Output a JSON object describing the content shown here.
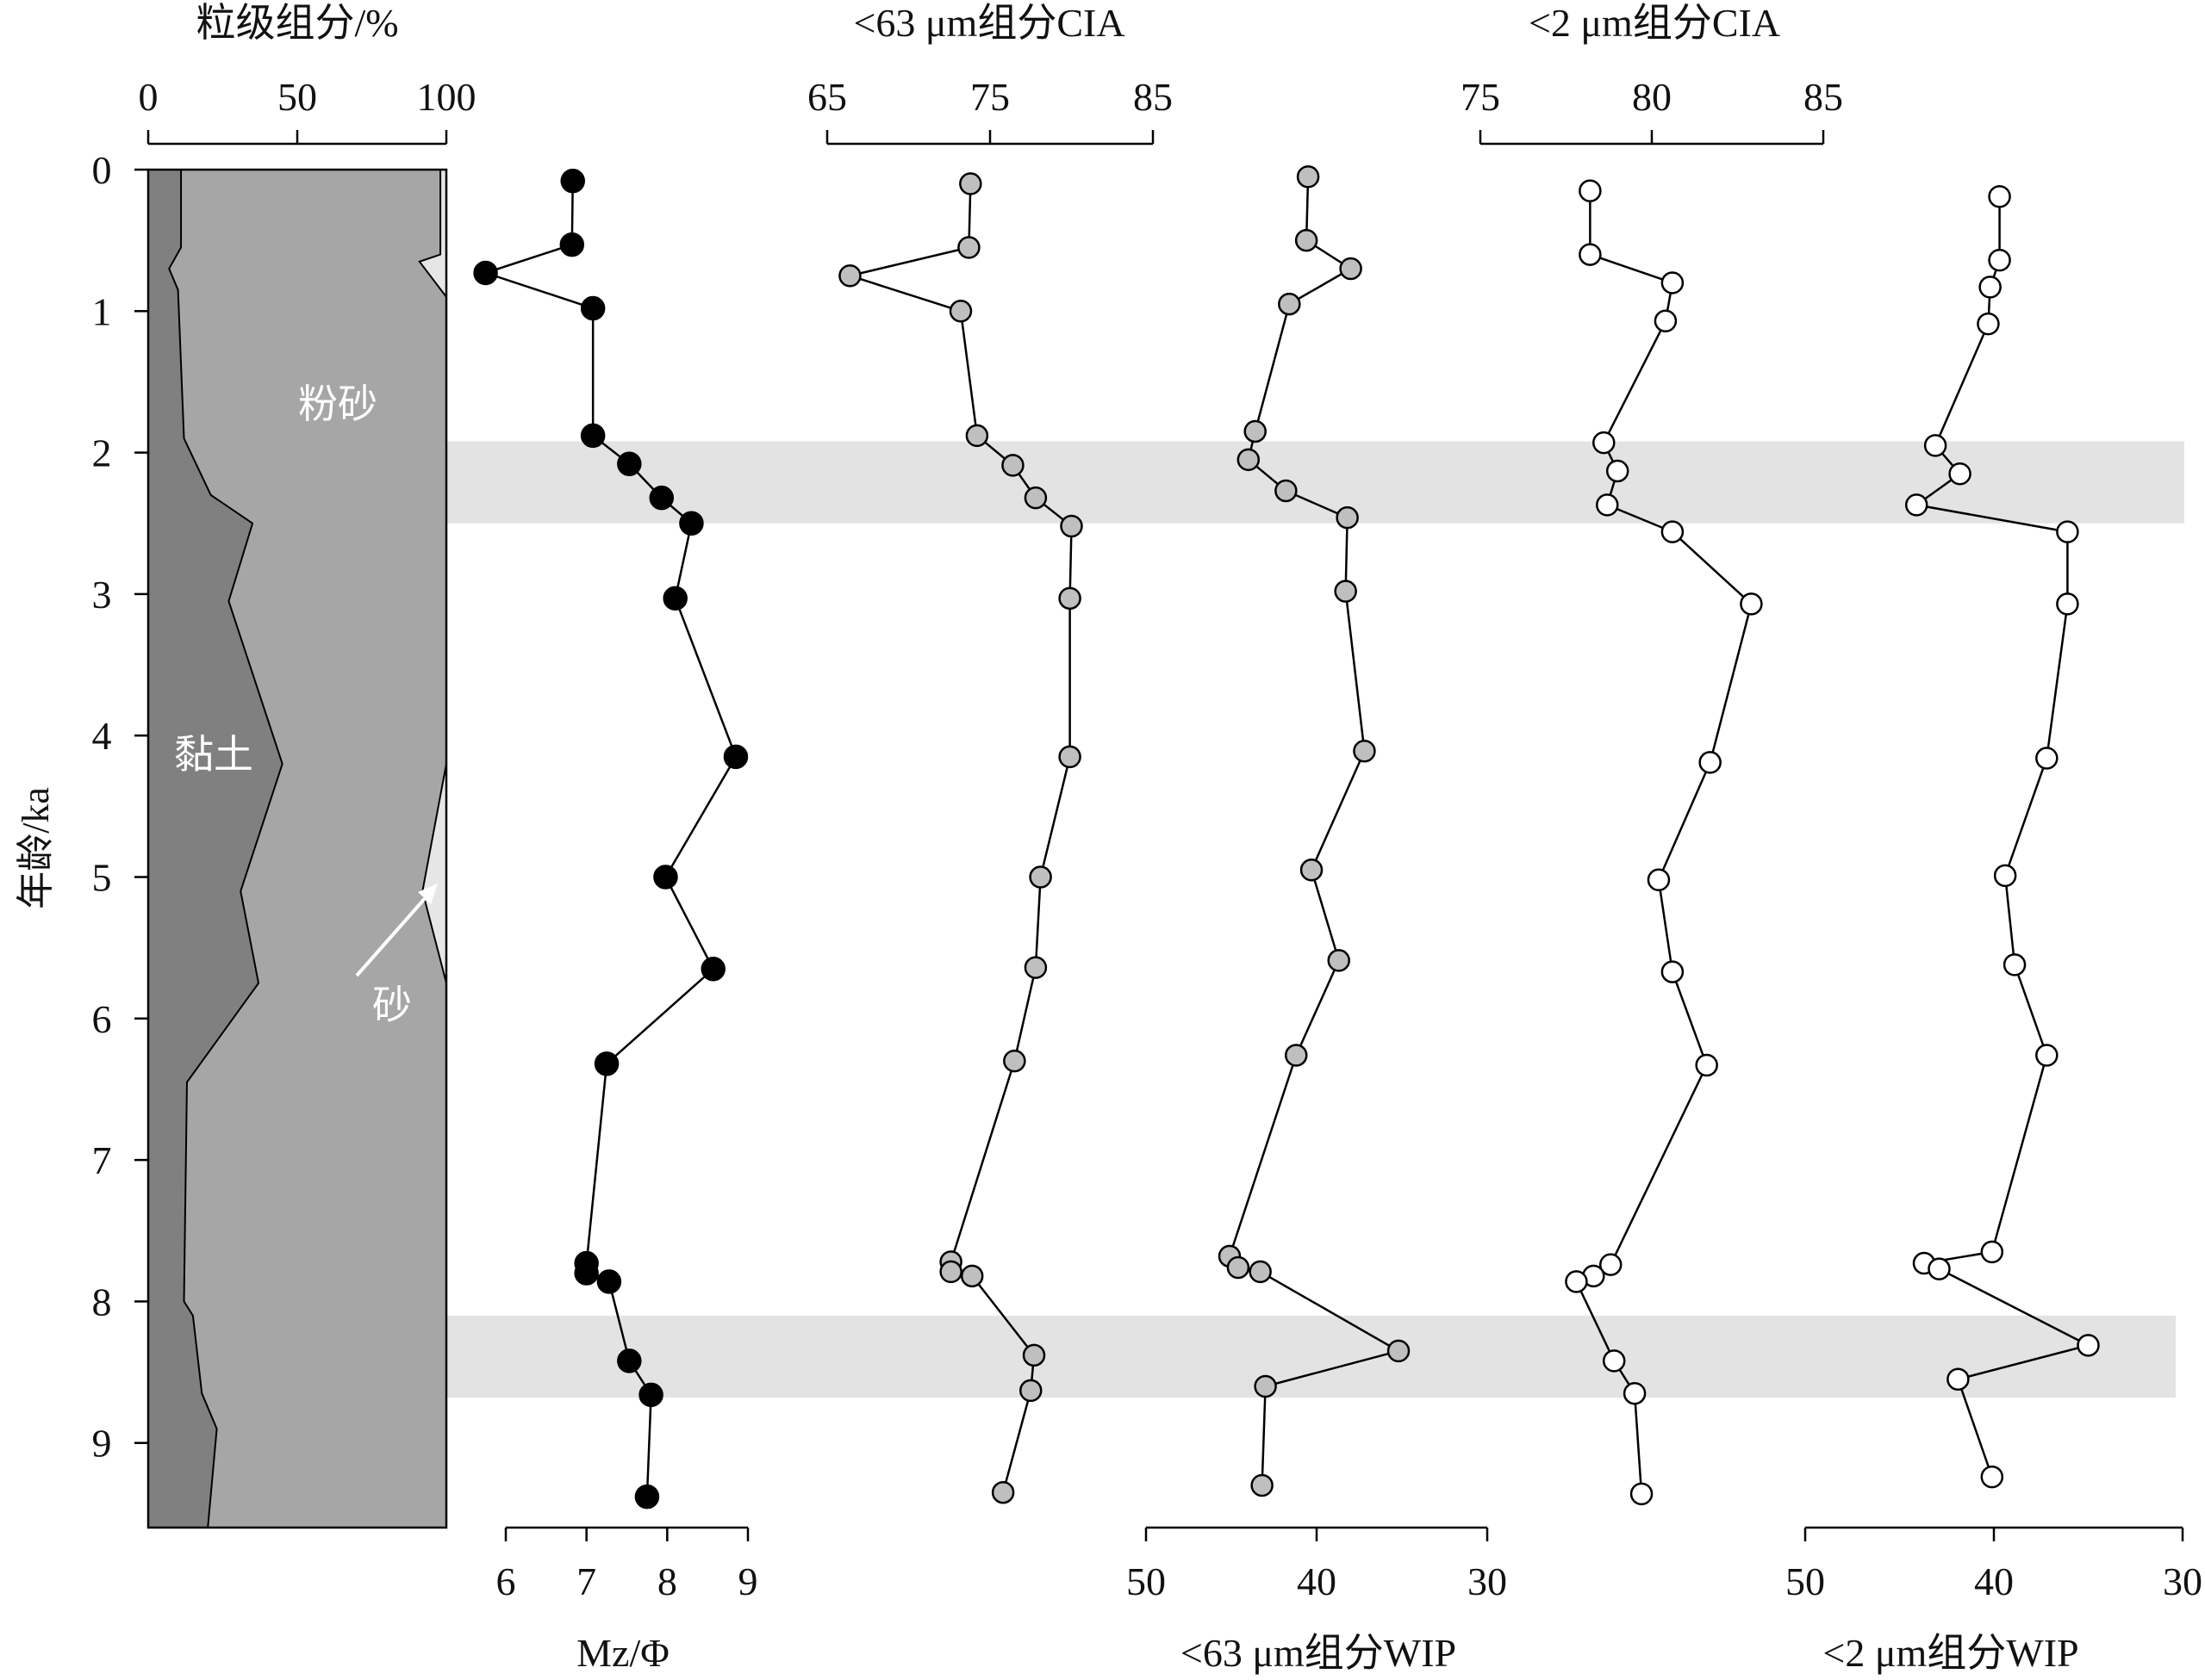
{
  "colors": {
    "clay": "#808080",
    "silt": "#a6a6a6",
    "sand": "#e6e6e6",
    "band": "#e3e3e3",
    "mz_fill": "#000000",
    "cia63_fill": "#bfbfbf",
    "cia2_fill": "#ffffff",
    "wip63_fill": "#bfbfbf",
    "wip2_fill": "#ffffff",
    "line": "#000000"
  },
  "labels": {
    "y_axis": "年龄/ka",
    "clay": "黏土",
    "silt": "粉砂",
    "sand": "砂"
  },
  "chart_data": [
    {
      "type": "area",
      "title": "粒级组分/%",
      "xlim": [
        0,
        100
      ],
      "x_ticks": [
        "0",
        "50",
        "100"
      ],
      "y_ticks": [
        "0",
        "1",
        "2",
        "3",
        "4",
        "5",
        "6",
        "7",
        "8",
        "9"
      ],
      "ylabel": "年龄/ka",
      "ylim": [
        0,
        9.6
      ],
      "y_inverted": true,
      "clay_upper": [
        [
          0,
          11
        ],
        [
          0.55,
          11
        ],
        [
          0.7,
          7
        ],
        [
          0.85,
          10
        ],
        [
          1.9,
          12
        ],
        [
          2.3,
          21
        ],
        [
          2.5,
          35
        ],
        [
          3.05,
          27
        ],
        [
          4.2,
          45
        ],
        [
          5.1,
          31
        ],
        [
          5.75,
          37
        ],
        [
          6.45,
          13
        ],
        [
          8.0,
          12
        ],
        [
          8.1,
          15
        ],
        [
          8.65,
          18
        ],
        [
          8.9,
          23
        ],
        [
          9.6,
          20
        ]
      ],
      "sand_lower": [
        [
          0,
          98
        ],
        [
          0.6,
          98
        ],
        [
          0.65,
          91
        ],
        [
          0.9,
          100
        ],
        [
          4.2,
          100
        ],
        [
          5.1,
          92
        ],
        [
          5.75,
          100
        ],
        [
          9.6,
          100
        ]
      ],
      "region_labels": [
        "黏土",
        "粉砂",
        "砂"
      ]
    },
    {
      "type": "line",
      "xlabel": "Mz/Φ",
      "xlim": [
        6,
        9
      ],
      "x_ticks": [
        "6",
        "7",
        "8",
        "9"
      ],
      "marker": "filled",
      "points": [
        [
          6.83,
          0.08
        ],
        [
          6.82,
          0.53
        ],
        [
          5.75,
          0.73
        ],
        [
          7.08,
          0.98
        ],
        [
          7.08,
          1.88
        ],
        [
          7.53,
          2.08
        ],
        [
          7.93,
          2.32
        ],
        [
          8.3,
          2.5
        ],
        [
          8.1,
          3.03
        ],
        [
          8.85,
          4.15
        ],
        [
          7.98,
          5.0
        ],
        [
          8.57,
          5.65
        ],
        [
          7.25,
          6.32
        ],
        [
          7.0,
          7.73
        ],
        [
          7.0,
          7.8
        ],
        [
          7.28,
          7.86
        ],
        [
          7.53,
          8.42
        ],
        [
          7.8,
          8.66
        ],
        [
          7.75,
          9.38
        ]
      ]
    },
    {
      "type": "line",
      "title": "<63 μm组分CIA",
      "xlim": [
        65,
        85
      ],
      "x_ticks": [
        "65",
        "75",
        "85"
      ],
      "marker": "grey",
      "points": [
        [
          73.8,
          0.1
        ],
        [
          73.7,
          0.55
        ],
        [
          66.4,
          0.75
        ],
        [
          73.2,
          1.0
        ],
        [
          74.2,
          1.88
        ],
        [
          76.4,
          2.09
        ],
        [
          77.8,
          2.32
        ],
        [
          80.0,
          2.52
        ],
        [
          79.9,
          3.03
        ],
        [
          79.9,
          4.15
        ],
        [
          78.1,
          5.0
        ],
        [
          77.8,
          5.64
        ],
        [
          76.5,
          6.3
        ],
        [
          72.6,
          7.72
        ],
        [
          72.6,
          7.79
        ],
        [
          73.9,
          7.82
        ],
        [
          77.7,
          8.38
        ],
        [
          77.5,
          8.63
        ],
        [
          75.8,
          9.35
        ]
      ]
    },
    {
      "type": "line",
      "xlabel": "<63 μm组分WIP",
      "xlim": [
        50,
        30
      ],
      "x_ticks": [
        "50",
        "40",
        "30"
      ],
      "marker": "grey",
      "points": [
        [
          40.5,
          0.05
        ],
        [
          40.6,
          0.5
        ],
        [
          38.0,
          0.7
        ],
        [
          41.6,
          0.95
        ],
        [
          43.6,
          1.85
        ],
        [
          44.0,
          2.05
        ],
        [
          41.8,
          2.27
        ],
        [
          38.2,
          2.46
        ],
        [
          38.3,
          2.98
        ],
        [
          37.2,
          4.11
        ],
        [
          40.3,
          4.95
        ],
        [
          38.7,
          5.59
        ],
        [
          41.2,
          6.26
        ],
        [
          45.1,
          7.68
        ],
        [
          44.6,
          7.76
        ],
        [
          43.3,
          7.79
        ],
        [
          35.2,
          8.35
        ],
        [
          43.0,
          8.6
        ],
        [
          43.2,
          9.3
        ]
      ]
    },
    {
      "type": "line",
      "title": "<2 μm组分CIA",
      "xlim": [
        75,
        85
      ],
      "x_ticks": [
        "75",
        "80",
        "85"
      ],
      "marker": "open",
      "points": [
        [
          78.2,
          0.15
        ],
        [
          78.2,
          0.6
        ],
        [
          80.6,
          0.8
        ],
        [
          80.4,
          1.07
        ],
        [
          78.6,
          1.93
        ],
        [
          79.0,
          2.13
        ],
        [
          78.7,
          2.37
        ],
        [
          80.6,
          2.56
        ],
        [
          82.9,
          3.07
        ],
        [
          81.7,
          4.19
        ],
        [
          80.2,
          5.02
        ],
        [
          80.6,
          5.67
        ],
        [
          81.6,
          6.33
        ],
        [
          78.8,
          7.74
        ],
        [
          78.3,
          7.82
        ],
        [
          77.8,
          7.86
        ],
        [
          78.9,
          8.42
        ],
        [
          79.5,
          8.65
        ],
        [
          79.7,
          9.36
        ]
      ]
    },
    {
      "type": "line",
      "xlabel": "<2 μm组分WIP",
      "xlim": [
        50,
        30
      ],
      "x_ticks": [
        "50",
        "40",
        "30"
      ],
      "marker": "open",
      "points": [
        [
          39.7,
          0.19
        ],
        [
          39.7,
          0.64
        ],
        [
          40.2,
          0.83
        ],
        [
          40.3,
          1.09
        ],
        [
          43.1,
          1.95
        ],
        [
          41.8,
          2.15
        ],
        [
          44.1,
          2.37
        ],
        [
          36.1,
          2.56
        ],
        [
          36.1,
          3.07
        ],
        [
          37.2,
          4.16
        ],
        [
          39.4,
          4.99
        ],
        [
          38.9,
          5.62
        ],
        [
          37.2,
          6.26
        ],
        [
          40.1,
          7.65
        ],
        [
          43.7,
          7.73
        ],
        [
          42.9,
          7.77
        ],
        [
          35.0,
          8.31
        ],
        [
          41.9,
          8.55
        ],
        [
          40.1,
          9.24
        ]
      ]
    }
  ],
  "bands": [
    [
      1.92,
      2.5
    ],
    [
      8.1,
      8.68
    ]
  ]
}
